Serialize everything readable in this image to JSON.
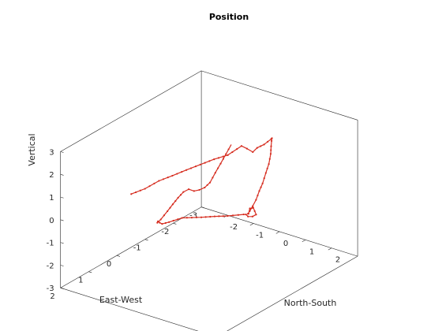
{
  "chart_data": {
    "type": "line3d",
    "title": "Position",
    "xlabel": "East-West",
    "ylabel": "North-South",
    "zlabel": "Vertical",
    "xlim": [
      -3,
      2
    ],
    "ylim": [
      -3,
      3
    ],
    "zlim": [
      -3,
      3
    ],
    "x_ticks": [
      "2",
      "1",
      "0",
      "-1",
      "-2",
      "-3"
    ],
    "y_ticks": [
      "-2",
      "-1",
      "0",
      "1",
      "2"
    ],
    "z_ticks": [
      "3",
      "2",
      "1",
      "0",
      "-1",
      "-2",
      "-3"
    ],
    "grid": false,
    "box": true,
    "colors": {
      "line": "#d62d20",
      "axes": "#262626"
    },
    "series": [
      {
        "points": [
          [
            1.3,
            -1.04,
            1.34
          ],
          [
            0.98,
            -0.86,
            1.41
          ],
          [
            0.65,
            -0.68,
            1.59
          ],
          [
            0.33,
            -0.51,
            1.65
          ],
          [
            0.0,
            -0.33,
            1.73
          ],
          [
            -0.33,
            -0.15,
            1.8
          ],
          [
            -0.65,
            0.03,
            1.87
          ],
          [
            -0.98,
            0.2,
            1.88
          ],
          [
            -1.3,
            0.38,
            2.12
          ],
          [
            -1.2,
            0.7,
            2.19
          ],
          [
            -1.1,
            1.03,
            2.23
          ],
          [
            -0.95,
            1.36,
            2.64
          ],
          [
            -0.9,
            1.68,
            2.94
          ],
          [
            -0.85,
            2.01,
            3.34
          ],
          [
            -0.7,
            2.2,
            3.55
          ],
          [
            -0.5,
            2.4,
            3.64
          ],
          [
            -0.3,
            2.6,
            3.62
          ],
          [
            -0.1,
            2.8,
            3.5
          ],
          [
            -0.08,
            2.75,
            3.05
          ],
          [
            -0.02,
            2.7,
            2.68
          ],
          [
            0.05,
            2.65,
            2.25
          ],
          [
            0.12,
            2.6,
            1.95
          ],
          [
            0.19,
            2.55,
            1.59
          ],
          [
            0.26,
            2.5,
            1.35
          ],
          [
            0.32,
            2.45,
            1.15
          ],
          [
            0.36,
            2.42,
            1.05
          ],
          [
            0.39,
            2.48,
            1.1
          ],
          [
            0.53,
            2.68,
            1.5
          ],
          [
            0.7,
            2.95,
            1.74
          ],
          [
            0.88,
            3.17,
            1.97
          ],
          [
            1.0,
            3.32,
            2.1
          ],
          [
            1.12,
            3.56,
            1.97
          ],
          [
            1.1,
            3.4,
            1.81
          ],
          [
            1.0,
            3.12,
            1.64
          ],
          [
            1.0,
            3.04,
            1.7
          ],
          [
            1.0,
            2.95,
            1.67
          ],
          [
            1.2,
            2.55,
            1.6
          ],
          [
            1.28,
            2.14,
            1.49
          ],
          [
            1.42,
            1.78,
            1.42
          ],
          [
            1.72,
            1.37,
            1.46
          ],
          [
            1.9,
            1.06,
            1.29
          ],
          [
            1.95,
            0.85,
            1.17
          ],
          [
            1.96,
            0.77,
            1.2
          ],
          [
            1.98,
            0.72,
            1.26
          ],
          [
            2.01,
            0.73,
            1.22
          ],
          [
            2.0,
            0.85,
            1.4
          ],
          [
            1.9,
            1.0,
            1.75
          ],
          [
            1.85,
            1.15,
            2.07
          ],
          [
            1.8,
            1.3,
            2.38
          ],
          [
            1.75,
            1.45,
            2.65
          ],
          [
            1.7,
            1.6,
            2.79
          ],
          [
            1.65,
            1.75,
            2.73
          ],
          [
            1.6,
            1.9,
            2.8
          ],
          [
            1.55,
            2.05,
            2.92
          ],
          [
            1.5,
            2.2,
            3.16
          ],
          [
            1.45,
            2.35,
            3.61
          ],
          [
            1.4,
            2.5,
            4.03
          ],
          [
            1.35,
            2.65,
            4.47
          ],
          [
            1.3,
            2.8,
            4.91
          ]
        ]
      }
    ]
  }
}
